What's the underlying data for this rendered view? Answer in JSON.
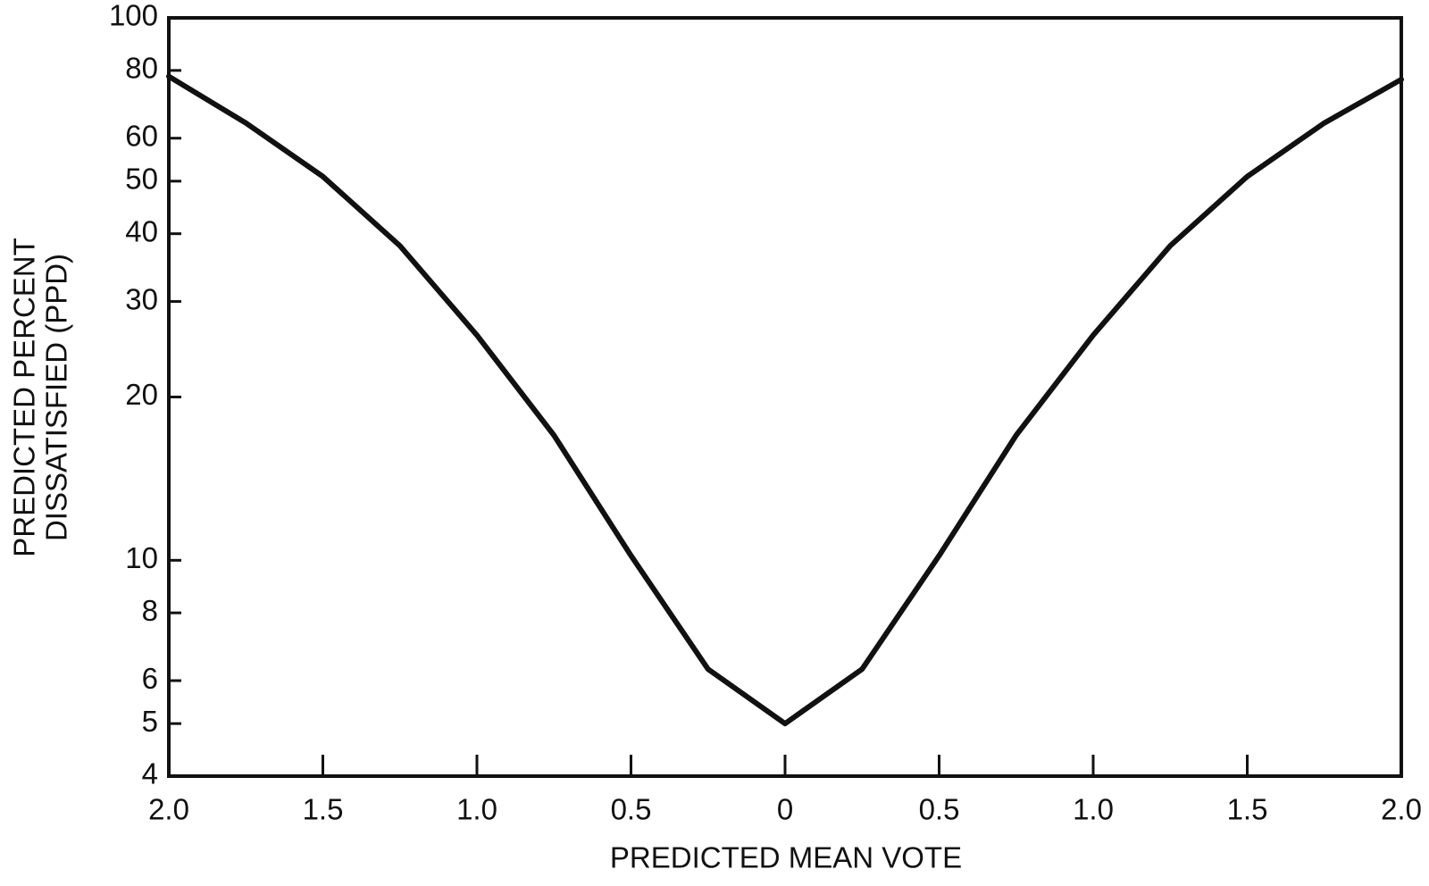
{
  "chart_data": {
    "type": "line",
    "xlabel": "PREDICTED MEAN VOTE",
    "ylabel": [
      "PREDICTED PERCENT",
      "DISSATISFIED (PPD)"
    ],
    "x": [
      -2,
      -1.75,
      -1.5,
      -1.25,
      -1,
      -0.75,
      -0.5,
      -0.25,
      0,
      0.25,
      0.5,
      0.75,
      1,
      1.25,
      1.5,
      1.75,
      2
    ],
    "series": [
      {
        "color": "#111111",
        "values": [
          78,
          64,
          51,
          38,
          26,
          17,
          10.2,
          6.3,
          5,
          6.3,
          10.2,
          17,
          26,
          38,
          51,
          64,
          77
        ]
      }
    ],
    "xlim": [
      -2,
      2
    ],
    "xticks": [
      {
        "value": -2,
        "label": "2.0"
      },
      {
        "value": -1.5,
        "label": "1.5"
      },
      {
        "value": -1,
        "label": "1.0"
      },
      {
        "value": -0.5,
        "label": "0.5"
      },
      0,
      0.5,
      {
        "value": 1,
        "label": "1.0"
      },
      1.5,
      {
        "value": 2,
        "label": "2.0"
      }
    ],
    "ylim": [
      4,
      100
    ],
    "yticks": [
      4,
      5,
      6,
      8,
      10,
      20,
      30,
      40,
      50,
      60,
      80,
      100
    ],
    "yscale": "log",
    "grid": false
  }
}
